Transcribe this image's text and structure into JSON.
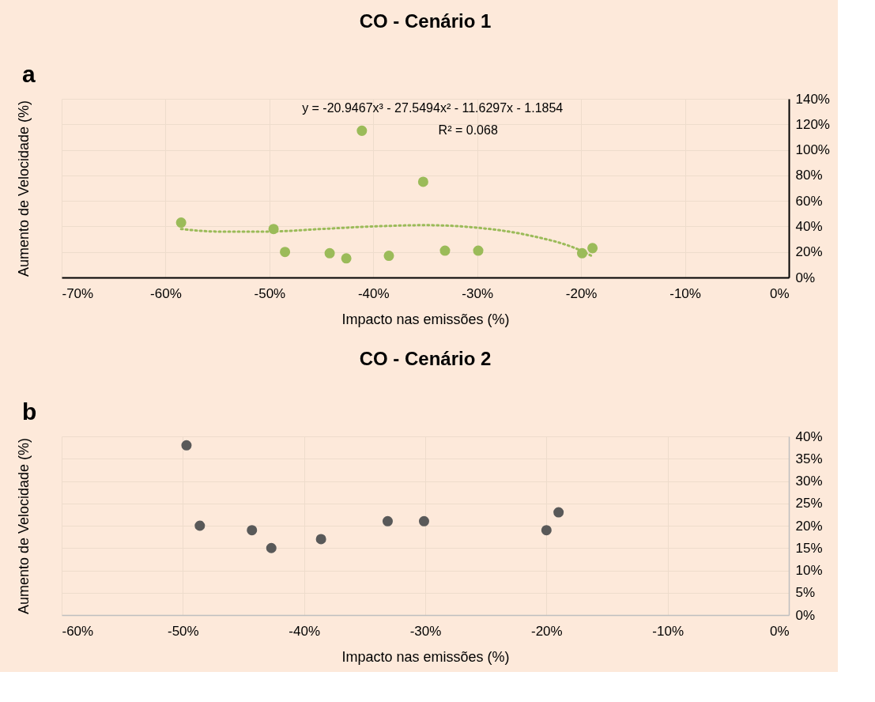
{
  "chart_data": [
    {
      "type": "scatter",
      "title": "CO - Cenário 1",
      "xlabel": "Impacto nas emissões (%)",
      "ylabel": "Aumento de Velocidade (%)",
      "xlim": [
        -70,
        0
      ],
      "xticks": [
        {
          "value": -70,
          "label": "-70%"
        },
        {
          "value": -60,
          "label": "-60%"
        },
        {
          "value": -50,
          "label": "-50%"
        },
        {
          "value": -40,
          "label": "-40%"
        },
        {
          "value": -30,
          "label": "-30%"
        },
        {
          "value": -20,
          "label": "-20%"
        },
        {
          "value": -10,
          "label": "-10%"
        },
        {
          "value": 0,
          "label": "0%"
        }
      ],
      "ylim": [
        0,
        140
      ],
      "yticks": [
        {
          "value": 0,
          "label": "0%"
        },
        {
          "value": 20,
          "label": "20%"
        },
        {
          "value": 40,
          "label": "40%"
        },
        {
          "value": 60,
          "label": "60%"
        },
        {
          "value": 80,
          "label": "80%"
        },
        {
          "value": 100,
          "label": "100%"
        },
        {
          "value": 120,
          "label": "120%"
        },
        {
          "value": 140,
          "label": "140%"
        }
      ],
      "grid": true,
      "marker": "circle",
      "annotations": [
        "a",
        "y = -20.9467x³ - 27.5494x² - 11.6297x - 1.1854",
        "R² = 0.068"
      ],
      "series": [
        {
          "color": "#9bbb59",
          "x": [
            -58.5,
            -49.6,
            -48.5,
            -44.2,
            -42.6,
            -38.5,
            -33.1,
            -29.9,
            -19.9,
            -18.9,
            -41.1,
            -35.2
          ],
          "values": [
            43,
            38,
            20,
            19,
            15,
            17,
            21,
            21,
            19,
            23,
            115,
            75
          ]
        },
        {
          "type": "line",
          "line_style": "dotted",
          "marker": "none",
          "color": "#9bbb59",
          "x": [
            -58.5,
            -55,
            -50,
            -45,
            -40,
            -35,
            -30,
            -25,
            -20,
            -19
          ],
          "values": [
            38,
            36,
            36,
            38,
            40,
            41,
            39,
            33,
            21,
            17
          ]
        }
      ]
    },
    {
      "type": "scatter",
      "title": "CO - Cenário 2",
      "xlabel": "Impacto nas emissões (%)",
      "ylabel": "Aumento de Velocidade (%)",
      "xlim": [
        -60,
        0
      ],
      "xticks": [
        {
          "value": -60,
          "label": "-60%"
        },
        {
          "value": -50,
          "label": "-50%"
        },
        {
          "value": -40,
          "label": "-40%"
        },
        {
          "value": -30,
          "label": "-30%"
        },
        {
          "value": -20,
          "label": "-20%"
        },
        {
          "value": -10,
          "label": "-10%"
        },
        {
          "value": 0,
          "label": "0%"
        }
      ],
      "ylim": [
        0,
        40
      ],
      "yticks": [
        {
          "value": 0,
          "label": "0%"
        },
        {
          "value": 5,
          "label": "5%"
        },
        {
          "value": 10,
          "label": "10%"
        },
        {
          "value": 15,
          "label": "15%"
        },
        {
          "value": 20,
          "label": "20%"
        },
        {
          "value": 25,
          "label": "25%"
        },
        {
          "value": 30,
          "label": "30%"
        },
        {
          "value": 35,
          "label": "35%"
        },
        {
          "value": 40,
          "label": "40%"
        }
      ],
      "grid": true,
      "marker": "circle",
      "annotations": [
        "b"
      ],
      "series": [
        {
          "color": "#595959",
          "x": [
            -49.7,
            -48.6,
            -44.3,
            -42.7,
            -38.6,
            -33.1,
            -30.1,
            -20,
            -19
          ],
          "values": [
            38,
            20,
            19,
            15,
            17,
            21,
            21,
            19,
            23
          ]
        }
      ]
    }
  ]
}
